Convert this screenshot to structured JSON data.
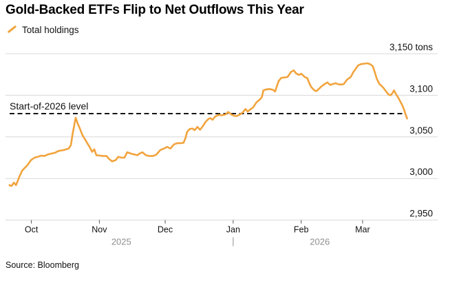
{
  "title": "Gold-Backed ETFs Flip to Net Outflows This Year",
  "legend": {
    "label": "Total holdings"
  },
  "source": "Source: Bloomberg",
  "colors": {
    "accent_orange": "#F1A33C",
    "gridline": "#D8D8D8",
    "axis_text": "#111111",
    "year_text": "#8F8F8F",
    "reference_line": "#141414"
  },
  "chart_data": {
    "type": "line",
    "title": "Gold-Backed ETFs Flip to Net Outflows This Year",
    "unit": "tons",
    "ylim": [
      2950,
      3150
    ],
    "grid": "horizontal",
    "legend_position": "top-left",
    "y_ticks": [
      {
        "value": 3150,
        "label": "3,150 tons"
      },
      {
        "value": 3100,
        "label": "3,100"
      },
      {
        "value": 3050,
        "label": "3,050"
      },
      {
        "value": 3000,
        "label": "3,000"
      },
      {
        "value": 2950,
        "label": "2,950"
      }
    ],
    "x_axis": {
      "unit": "days_from_2025-10-01",
      "month_ticks": [
        {
          "t": 0,
          "label": "Oct"
        },
        {
          "t": 31,
          "label": "Nov"
        },
        {
          "t": 61,
          "label": "Dec"
        },
        {
          "t": 92,
          "label": "Jan"
        },
        {
          "t": 123,
          "label": "Feb"
        },
        {
          "t": 151,
          "label": "Mar"
        }
      ],
      "year_labels": [
        {
          "label": "2025",
          "t_center": 41
        },
        {
          "label": "2026",
          "t_center": 131.5
        }
      ],
      "year_divider_t": 92
    },
    "reference_line": {
      "label": "Start-of-2026 level",
      "value": 3078,
      "style": "dashed-black"
    },
    "series": [
      {
        "name": "Total holdings",
        "color": "#F1A33C",
        "points": [
          [
            -10,
            2992
          ],
          [
            -9,
            2991
          ],
          [
            -8,
            2995
          ],
          [
            -7,
            2992
          ],
          [
            -5.5,
            3002
          ],
          [
            -4.3,
            3009
          ],
          [
            -3.3,
            3012
          ],
          [
            -1.8,
            3016
          ],
          [
            -0.2,
            3022
          ],
          [
            1.4,
            3025
          ],
          [
            2.9,
            3026
          ],
          [
            4.5,
            3027.5
          ],
          [
            6,
            3027
          ],
          [
            7.6,
            3029
          ],
          [
            9.2,
            3030
          ],
          [
            10.8,
            3031
          ],
          [
            12.3,
            3033
          ],
          [
            13.3,
            3033.5
          ],
          [
            14.5,
            3034
          ],
          [
            15.8,
            3035
          ],
          [
            17,
            3036
          ],
          [
            18,
            3040
          ],
          [
            18.9,
            3055
          ],
          [
            19.6,
            3065
          ],
          [
            20.2,
            3073
          ],
          [
            21.1,
            3066
          ],
          [
            21.8,
            3062
          ],
          [
            23.3,
            3052
          ],
          [
            24.9,
            3045
          ],
          [
            26.5,
            3038
          ],
          [
            27.7,
            3032
          ],
          [
            28.7,
            3035
          ],
          [
            29.6,
            3028
          ],
          [
            31.2,
            3027.5
          ],
          [
            32.7,
            3027
          ],
          [
            34.3,
            3027
          ],
          [
            35.2,
            3024
          ],
          [
            36.8,
            3020.5
          ],
          [
            38.4,
            3022
          ],
          [
            39.6,
            3026
          ],
          [
            41.2,
            3025
          ],
          [
            42.4,
            3025
          ],
          [
            43.7,
            3031.5
          ],
          [
            45.3,
            3030
          ],
          [
            46.8,
            3029
          ],
          [
            48.4,
            3028
          ],
          [
            49.3,
            3030
          ],
          [
            50.6,
            3031.5
          ],
          [
            52.2,
            3028
          ],
          [
            53.7,
            3027
          ],
          [
            55.3,
            3027
          ],
          [
            56.9,
            3028.5
          ],
          [
            58.7,
            3034
          ],
          [
            60.9,
            3036.5
          ],
          [
            61.9,
            3038
          ],
          [
            63.4,
            3036
          ],
          [
            65,
            3041
          ],
          [
            66.6,
            3042.5
          ],
          [
            68.2,
            3042.5
          ],
          [
            69.4,
            3043
          ],
          [
            70.3,
            3049
          ],
          [
            71,
            3056
          ],
          [
            72.2,
            3059.5
          ],
          [
            73.5,
            3060
          ],
          [
            74.4,
            3058
          ],
          [
            75.7,
            3062
          ],
          [
            76.9,
            3058.5
          ],
          [
            78.2,
            3063
          ],
          [
            79.4,
            3068
          ],
          [
            80.7,
            3071.5
          ],
          [
            81.6,
            3072.5
          ],
          [
            82.6,
            3070.5
          ],
          [
            83.8,
            3074.5
          ],
          [
            85.4,
            3076.5
          ],
          [
            87,
            3076
          ],
          [
            88.5,
            3077
          ],
          [
            89.8,
            3080
          ],
          [
            91.1,
            3077
          ],
          [
            92.3,
            3075.5
          ],
          [
            93.5,
            3075
          ],
          [
            94.8,
            3076.5
          ],
          [
            96.4,
            3079.5
          ],
          [
            97.6,
            3083.5
          ],
          [
            98.6,
            3080.5
          ],
          [
            99.8,
            3083
          ],
          [
            101.1,
            3085.5
          ],
          [
            102.6,
            3091.5
          ],
          [
            104.2,
            3095
          ],
          [
            105.1,
            3098
          ],
          [
            105.8,
            3106
          ],
          [
            107,
            3107
          ],
          [
            108.6,
            3107.5
          ],
          [
            110.2,
            3106.5
          ],
          [
            111.1,
            3104.5
          ],
          [
            112.7,
            3117
          ],
          [
            113.9,
            3121
          ],
          [
            115.5,
            3121.5
          ],
          [
            116.8,
            3122
          ],
          [
            118.3,
            3128
          ],
          [
            119.6,
            3130
          ],
          [
            120.8,
            3126
          ],
          [
            122.1,
            3124.5
          ],
          [
            123,
            3126
          ],
          [
            124.6,
            3122
          ],
          [
            125.8,
            3120.5
          ],
          [
            126.8,
            3114
          ],
          [
            127.7,
            3109.5
          ],
          [
            129,
            3106
          ],
          [
            129.9,
            3105
          ],
          [
            131.2,
            3108
          ],
          [
            132.4,
            3111
          ],
          [
            133.7,
            3113.5
          ],
          [
            134.9,
            3115.5
          ],
          [
            136.2,
            3112.5
          ],
          [
            137.4,
            3113.5
          ],
          [
            138.7,
            3114.5
          ],
          [
            140.3,
            3113
          ],
          [
            141.5,
            3113
          ],
          [
            142.4,
            3113.5
          ],
          [
            144,
            3119
          ],
          [
            145.6,
            3122
          ],
          [
            146.8,
            3128
          ],
          [
            147.8,
            3131.5
          ],
          [
            149,
            3136
          ],
          [
            150.3,
            3137.5
          ],
          [
            151.8,
            3138
          ],
          [
            153.1,
            3138.5
          ],
          [
            154.4,
            3137.5
          ],
          [
            155.6,
            3135
          ],
          [
            156.6,
            3127.5
          ],
          [
            157.5,
            3119.5
          ],
          [
            158.7,
            3113.5
          ],
          [
            160.3,
            3109.5
          ],
          [
            161.9,
            3104
          ],
          [
            162.8,
            3101
          ],
          [
            163.8,
            3100
          ],
          [
            164.7,
            3103
          ],
          [
            165.3,
            3106
          ],
          [
            166.3,
            3101
          ],
          [
            167.2,
            3097.5
          ],
          [
            168.1,
            3093
          ],
          [
            169.1,
            3088
          ],
          [
            170,
            3082
          ],
          [
            170.6,
            3077
          ],
          [
            171.3,
            3072
          ]
        ]
      }
    ]
  }
}
